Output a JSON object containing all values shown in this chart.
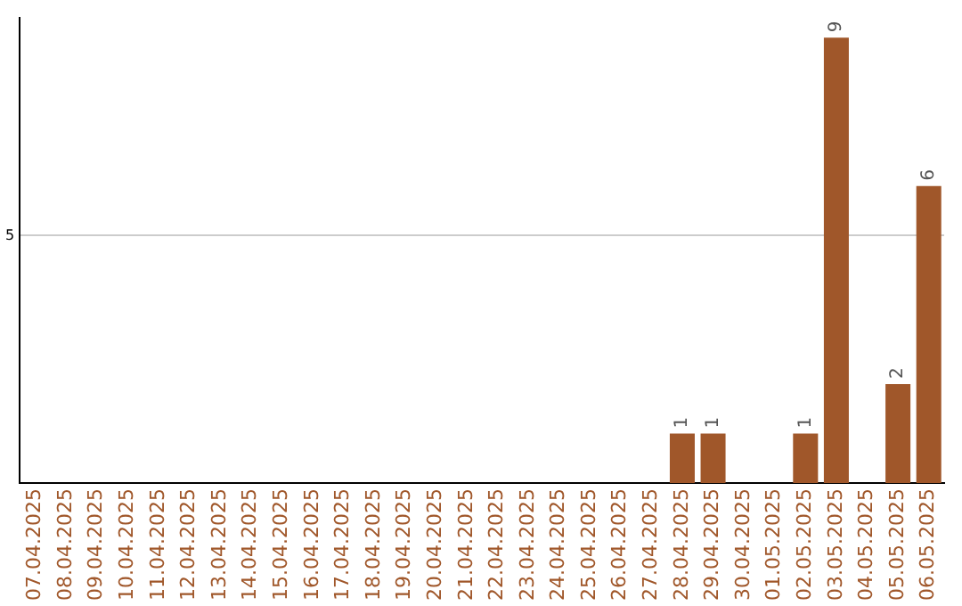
{
  "chart_data": {
    "type": "bar",
    "categories": [
      "07.04.2025",
      "08.04.2025",
      "09.04.2025",
      "10.04.2025",
      "11.04.2025",
      "12.04.2025",
      "13.04.2025",
      "14.04.2025",
      "15.04.2025",
      "16.04.2025",
      "17.04.2025",
      "18.04.2025",
      "19.04.2025",
      "20.04.2025",
      "21.04.2025",
      "22.04.2025",
      "23.04.2025",
      "24.04.2025",
      "25.04.2025",
      "26.04.2025",
      "27.04.2025",
      "28.04.2025",
      "29.04.2025",
      "30.04.2025",
      "01.05.2025",
      "02.05.2025",
      "03.05.2025",
      "04.05.2025",
      "05.05.2025",
      "06.05.2025"
    ],
    "values": [
      null,
      null,
      null,
      null,
      null,
      null,
      null,
      null,
      null,
      null,
      null,
      null,
      null,
      null,
      null,
      null,
      null,
      null,
      null,
      null,
      null,
      1,
      1,
      null,
      null,
      1,
      9,
      null,
      2,
      6
    ],
    "color": "#a0572a",
    "ylim": [
      0,
      9.4
    ],
    "yticks": [
      5
    ],
    "grid": "y",
    "data_labels": true,
    "legend": false
  }
}
